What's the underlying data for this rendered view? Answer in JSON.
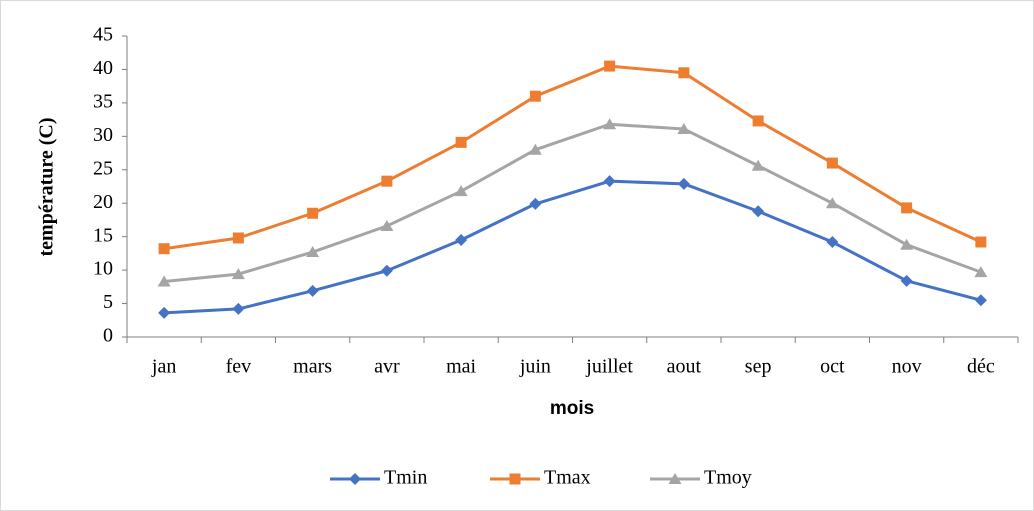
{
  "chart_data": {
    "type": "line",
    "xlabel": "mois",
    "ylabel": "température (C)",
    "categories": [
      "jan",
      "fev",
      "mars",
      "avr",
      "mai",
      "juin",
      "juillet",
      "aout",
      "sep",
      "oct",
      "nov",
      "déc"
    ],
    "series": [
      {
        "name": "Tmin",
        "color": "#4472c4",
        "marker": "diamond",
        "values": [
          3.6,
          4.2,
          6.9,
          9.9,
          14.5,
          19.9,
          23.3,
          22.9,
          18.8,
          14.2,
          8.4,
          5.5
        ]
      },
      {
        "name": "Tmax",
        "color": "#ed7d31",
        "marker": "square",
        "values": [
          13.2,
          14.8,
          18.5,
          23.3,
          29.1,
          36,
          40.5,
          39.5,
          32.3,
          26,
          19.3,
          14.2
        ]
      },
      {
        "name": "Tmoy",
        "color": "#a5a5a5",
        "marker": "triangle",
        "values": [
          8.3,
          9.4,
          12.7,
          16.6,
          21.8,
          28,
          31.8,
          31.1,
          25.6,
          20,
          13.8,
          9.7
        ]
      }
    ],
    "ylim": [
      0,
      45
    ],
    "yticks": [
      0,
      5,
      10,
      15,
      20,
      25,
      30,
      35,
      40,
      45
    ],
    "grid": false,
    "legend": "bottom"
  }
}
